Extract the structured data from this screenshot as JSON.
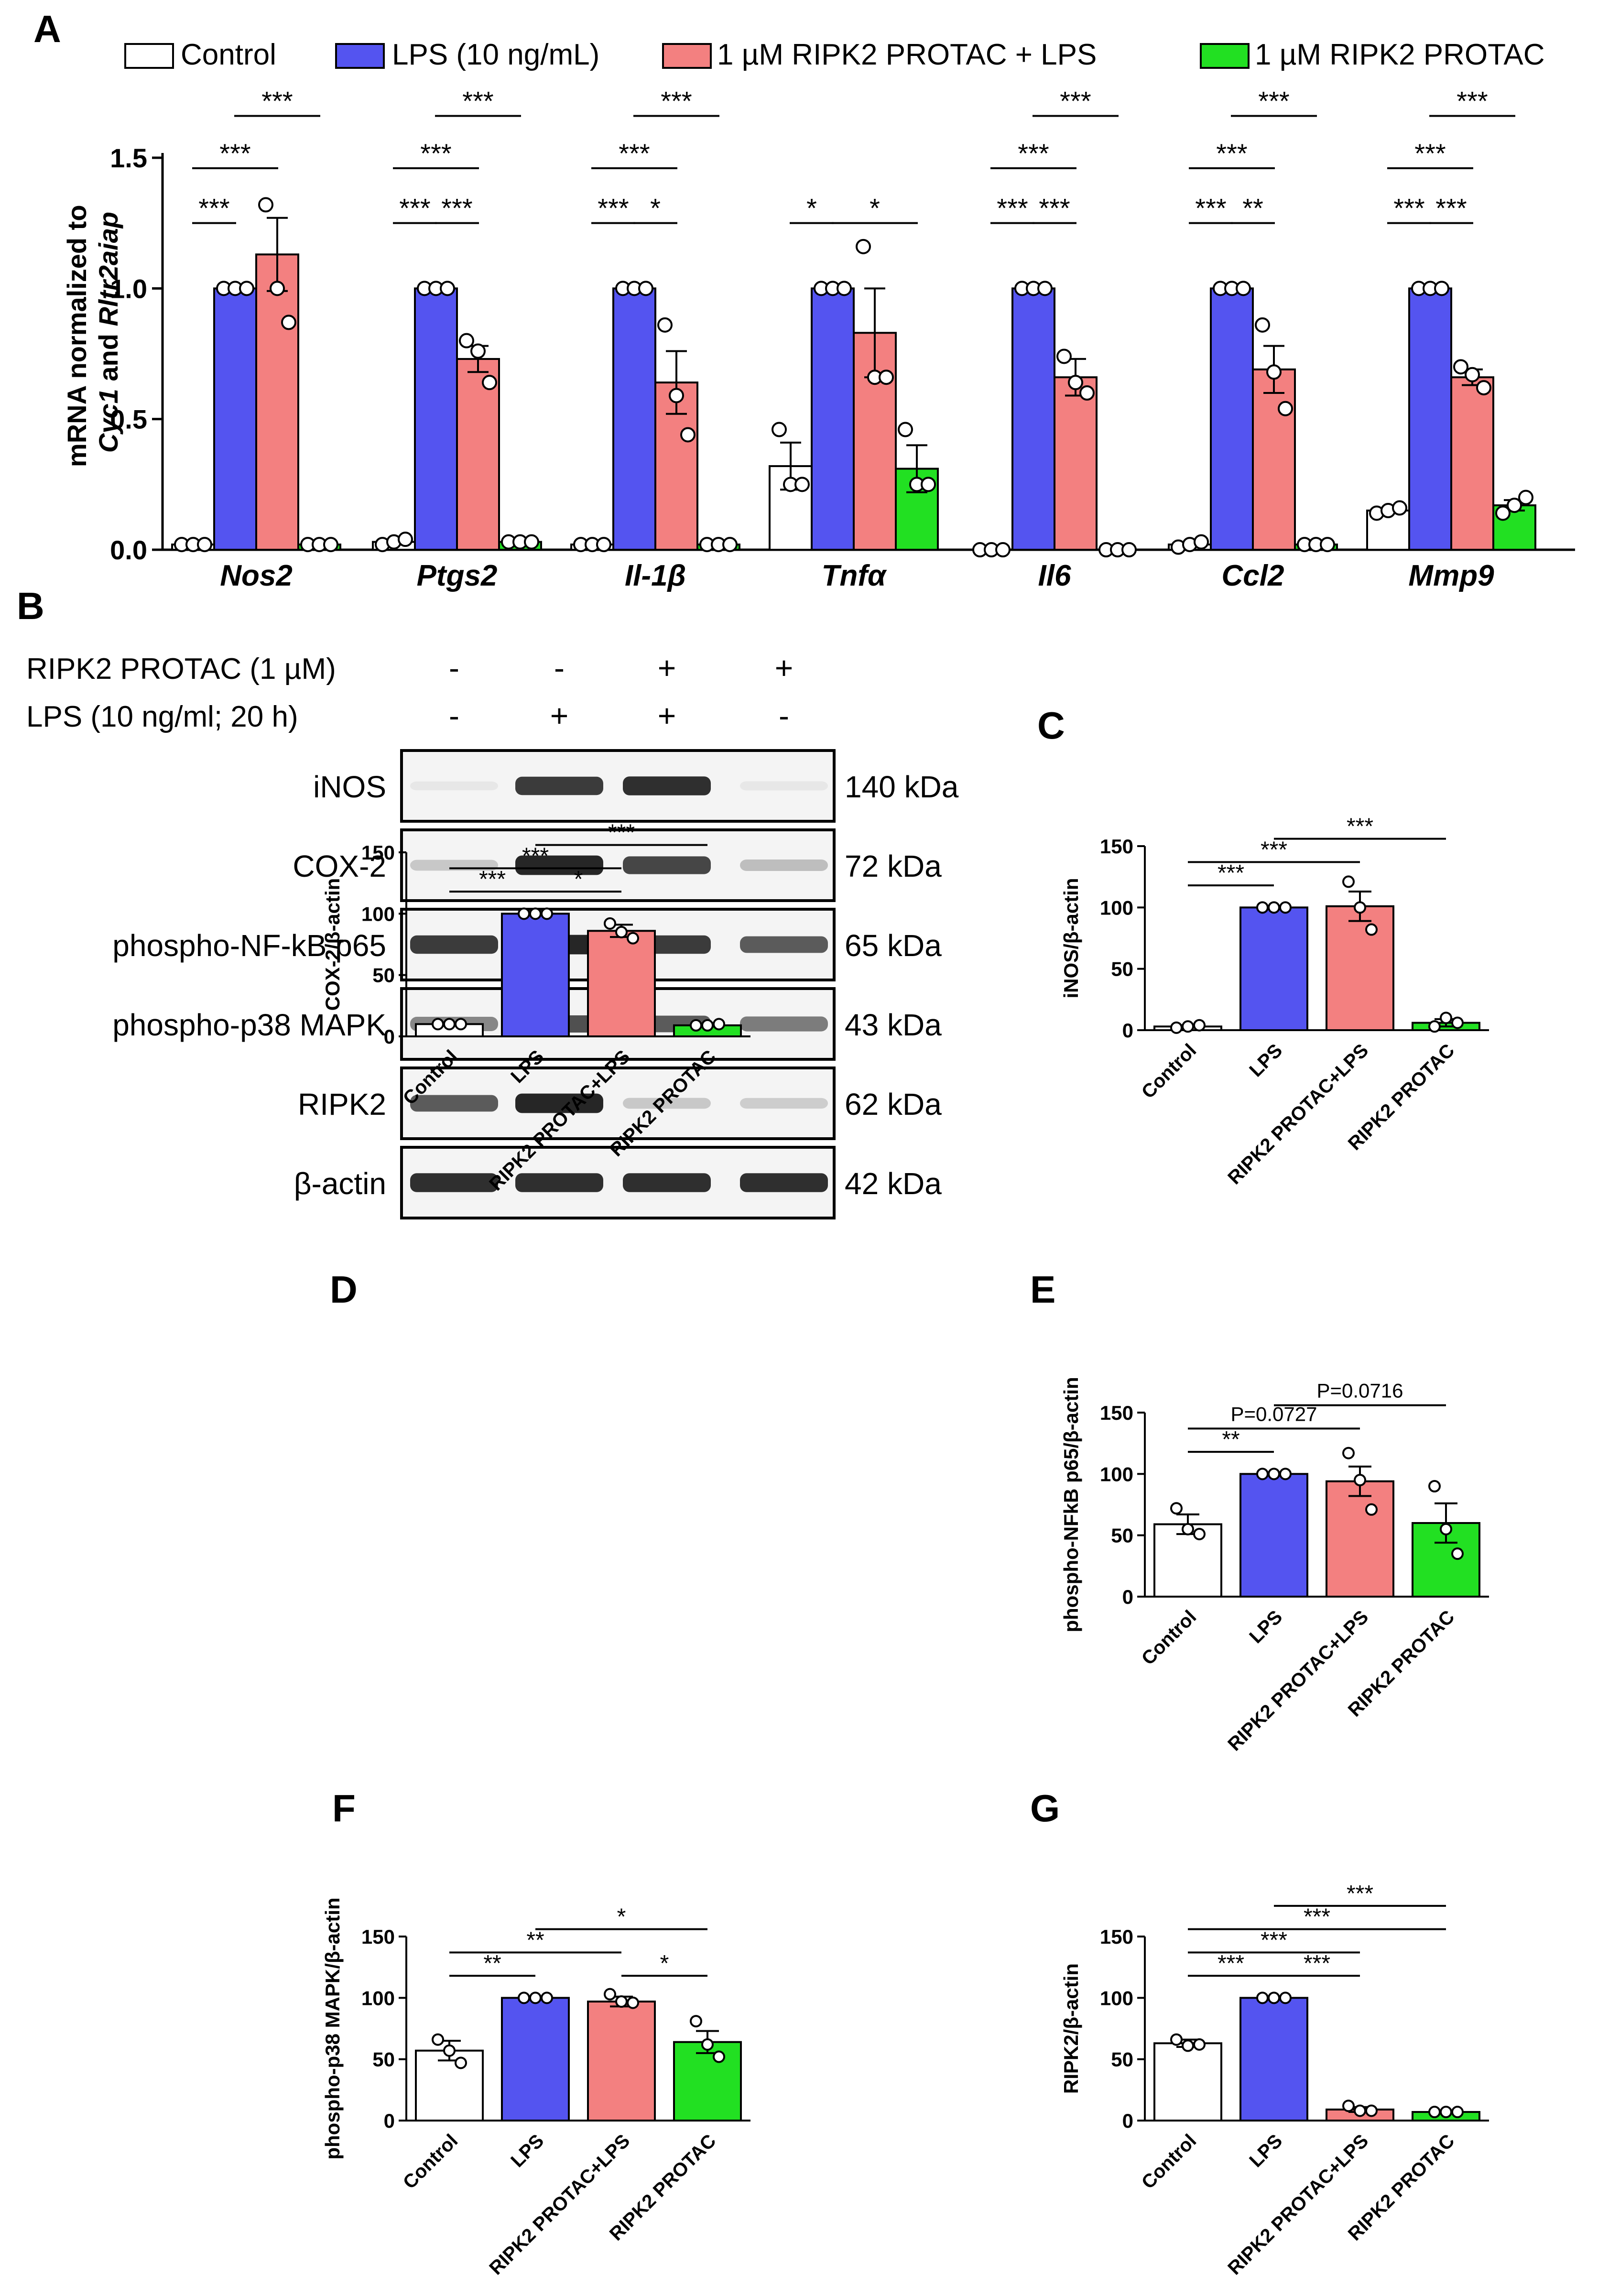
{
  "colors": {
    "control": "#ffffff",
    "lps": "#5454f0",
    "combo": "#f38080",
    "protac": "#22e022",
    "band": "#1a1a1a",
    "blot_bg": "#f4f4f4"
  },
  "panel_labels": [
    "A",
    "B",
    "C",
    "D",
    "E",
    "F",
    "G"
  ],
  "legend": [
    {
      "label": "Control",
      "color": "#ffffff"
    },
    {
      "label": "LPS (10 ng/mL)",
      "color": "#5454f0"
    },
    {
      "label": "1 µM RIPK2 PROTAC + LPS",
      "color": "#f38080"
    },
    {
      "label": "1 µM RIPK2 PROTAC",
      "color": "#22e022"
    }
  ],
  "blot": {
    "treatments": [
      {
        "label": "RIPK2 PROTAC (1 µM)",
        "signs": [
          "-",
          "-",
          "+",
          "+"
        ]
      },
      {
        "label": "LPS (10 ng/ml; 20 h)",
        "signs": [
          "-",
          "+",
          "+",
          "-"
        ]
      }
    ],
    "rows": [
      {
        "name": "iNOS",
        "size": "140 kDa",
        "intensity": [
          0.02,
          0.85,
          0.9,
          0.05
        ]
      },
      {
        "name": "COX-2",
        "size": "72 kDa",
        "intensity": [
          0.2,
          0.95,
          0.8,
          0.25
        ]
      },
      {
        "name": "phospho-NF-kB p65",
        "size": "65 kDa",
        "intensity": [
          0.85,
          0.95,
          0.85,
          0.7
        ]
      },
      {
        "name": "phospho-p38 MAPK",
        "size": "43 kDa",
        "intensity": [
          0.5,
          0.75,
          0.7,
          0.55
        ]
      },
      {
        "name": "RIPK2",
        "size": "62 kDa",
        "intensity": [
          0.7,
          0.95,
          0.2,
          0.18
        ]
      },
      {
        "name": "β-actin",
        "size": "42 kDa",
        "intensity": [
          0.9,
          0.9,
          0.9,
          0.9
        ]
      }
    ]
  },
  "chart_data": [
    {
      "id": "A",
      "type": "bar",
      "ylabel_parts": [
        "mRNA normalized to",
        "Cyc1",
        " and ",
        "Rltr2aiap"
      ],
      "ylim": [
        0,
        1.5
      ],
      "yticks": [
        "0.0",
        "0.5",
        "1.0",
        "1.5"
      ],
      "ytick_values": [
        0,
        0.5,
        1.0,
        1.5
      ],
      "series_names": [
        "Control",
        "LPS (10 ng/mL)",
        "1 µM RIPK2 PROTAC + LPS",
        "1 µM RIPK2 PROTAC"
      ],
      "groups": [
        {
          "gene": "Nos2",
          "values": [
            0.02,
            1.0,
            1.13,
            0.02
          ],
          "errors": [
            0.005,
            0,
            0.14,
            0.005
          ],
          "points": [
            [
              0.02,
              0.02,
              0.02
            ],
            [
              1,
              1,
              1
            ],
            [
              1.32,
              1.0,
              0.87
            ],
            [
              0.02,
              0.02,
              0.02
            ]
          ],
          "sig": [
            {
              "a": 0,
              "b": 1,
              "label": "***",
              "level": 1.25
            },
            {
              "a": 0,
              "b": 2,
              "label": "***",
              "level": 1.46
            },
            {
              "a": 1,
              "b": 3,
              "label": "***",
              "level": 1.66
            }
          ]
        },
        {
          "gene": "Ptgs2",
          "values": [
            0.03,
            1.0,
            0.73,
            0.03
          ],
          "errors": [
            0.01,
            0,
            0.05,
            0.01
          ],
          "points": [
            [
              0.02,
              0.03,
              0.04
            ],
            [
              1,
              1,
              1
            ],
            [
              0.8,
              0.76,
              0.64
            ],
            [
              0.03,
              0.03,
              0.03
            ]
          ],
          "sig": [
            {
              "a": 0,
              "b": 1,
              "label": "***",
              "level": 1.25
            },
            {
              "a": 1,
              "b": 2,
              "label": "***",
              "level": 1.25
            },
            {
              "a": 0,
              "b": 2,
              "label": "***",
              "level": 1.46
            },
            {
              "a": 1,
              "b": 3,
              "label": "***",
              "level": 1.66
            }
          ]
        },
        {
          "gene": "Il-1β",
          "values": [
            0.02,
            1.0,
            0.64,
            0.02
          ],
          "errors": [
            0.005,
            0,
            0.12,
            0.005
          ],
          "points": [
            [
              0.02,
              0.02,
              0.02
            ],
            [
              1,
              1,
              1
            ],
            [
              0.86,
              0.59,
              0.44
            ],
            [
              0.02,
              0.02,
              0.02
            ]
          ],
          "sig": [
            {
              "a": 0,
              "b": 1,
              "label": "***",
              "level": 1.25
            },
            {
              "a": 1,
              "b": 2,
              "label": "*",
              "level": 1.25
            },
            {
              "a": 0,
              "b": 2,
              "label": "***",
              "level": 1.46
            },
            {
              "a": 1,
              "b": 3,
              "label": "***",
              "level": 1.66
            }
          ]
        },
        {
          "gene": "Tnfα",
          "values": [
            0.32,
            1.0,
            0.83,
            0.31
          ],
          "errors": [
            0.09,
            0,
            0.17,
            0.09
          ],
          "points": [
            [
              0.46,
              0.25,
              0.25
            ],
            [
              1,
              1,
              1
            ],
            [
              1.16,
              0.66,
              0.66
            ],
            [
              0.46,
              0.25,
              0.25
            ]
          ],
          "sig": [
            {
              "a": 0,
              "b": 1,
              "label": "*",
              "level": 1.25
            },
            {
              "a": 1,
              "b": 3,
              "label": "*",
              "level": 1.25
            }
          ]
        },
        {
          "gene": "Il6",
          "values": [
            0.0,
            1.0,
            0.66,
            0.0
          ],
          "errors": [
            0,
            0,
            0.07,
            0
          ],
          "points": [
            [
              0,
              0,
              0
            ],
            [
              1,
              1,
              1
            ],
            [
              0.74,
              0.64,
              0.6
            ],
            [
              0,
              0,
              0
            ]
          ],
          "sig": [
            {
              "a": 0,
              "b": 1,
              "label": "***",
              "level": 1.25
            },
            {
              "a": 1,
              "b": 2,
              "label": "***",
              "level": 1.25
            },
            {
              "a": 0,
              "b": 2,
              "label": "***",
              "level": 1.46
            },
            {
              "a": 1,
              "b": 3,
              "label": "***",
              "level": 1.66
            }
          ]
        },
        {
          "gene": "Ccl2",
          "values": [
            0.02,
            1.0,
            0.69,
            0.02
          ],
          "errors": [
            0.005,
            0,
            0.09,
            0.005
          ],
          "points": [
            [
              0.01,
              0.02,
              0.03
            ],
            [
              1,
              1,
              1
            ],
            [
              0.86,
              0.68,
              0.54
            ],
            [
              0.02,
              0.02,
              0.02
            ]
          ],
          "sig": [
            {
              "a": 0,
              "b": 1,
              "label": "***",
              "level": 1.25
            },
            {
              "a": 1,
              "b": 2,
              "label": "**",
              "level": 1.25
            },
            {
              "a": 0,
              "b": 2,
              "label": "***",
              "level": 1.46
            },
            {
              "a": 1,
              "b": 3,
              "label": "***",
              "level": 1.66
            }
          ]
        },
        {
          "gene": "Mmp9",
          "values": [
            0.15,
            1.0,
            0.66,
            0.17
          ],
          "errors": [
            0.01,
            0,
            0.03,
            0.02
          ],
          "points": [
            [
              0.14,
              0.15,
              0.16
            ],
            [
              1,
              1,
              1
            ],
            [
              0.7,
              0.67,
              0.62
            ],
            [
              0.14,
              0.17,
              0.2
            ]
          ],
          "sig": [
            {
              "a": 0,
              "b": 1,
              "label": "***",
              "level": 1.25
            },
            {
              "a": 1,
              "b": 2,
              "label": "***",
              "level": 1.25
            },
            {
              "a": 0,
              "b": 2,
              "label": "***",
              "level": 1.46
            },
            {
              "a": 1,
              "b": 3,
              "label": "***",
              "level": 1.66
            }
          ]
        }
      ]
    },
    {
      "id": "C",
      "type": "bar",
      "ylabel": "iNOS/β-actin",
      "ylim": [
        0,
        150
      ],
      "yticks": [
        "0",
        "50",
        "100",
        "150"
      ],
      "ytick_values": [
        0,
        50,
        100,
        150
      ],
      "categories": [
        "Control",
        "LPS",
        "RIPK2 PROTAC+LPS",
        "RIPK2 PROTAC"
      ],
      "values": [
        3,
        100,
        101,
        6
      ],
      "errors": [
        1,
        0,
        12,
        3
      ],
      "points": [
        [
          2,
          3,
          4
        ],
        [
          100,
          100,
          100
        ],
        [
          121,
          100,
          82
        ],
        [
          3,
          10,
          6
        ]
      ],
      "sig": [
        {
          "a": 0,
          "b": 1,
          "label": "***",
          "level": 118
        },
        {
          "a": 0,
          "b": 2,
          "label": "***",
          "level": 137
        },
        {
          "a": 1,
          "b": 3,
          "label": "***",
          "level": 156
        }
      ]
    },
    {
      "id": "D",
      "type": "bar",
      "ylabel": "COX-2/β-actin",
      "ylim": [
        0,
        150
      ],
      "yticks": [
        "0",
        "50",
        "100",
        "150"
      ],
      "ytick_values": [
        0,
        50,
        100,
        150
      ],
      "categories": [
        "Control",
        "LPS",
        "RIPK2 PROTAC+LPS",
        "RIPK2 PROTAC"
      ],
      "values": [
        10,
        100,
        86,
        9
      ],
      "errors": [
        1,
        0,
        5,
        1
      ],
      "points": [
        [
          10,
          10,
          10
        ],
        [
          100,
          100,
          100
        ],
        [
          92,
          85,
          80
        ],
        [
          9,
          9,
          10
        ]
      ],
      "sig": [
        {
          "a": 0,
          "b": 1,
          "label": "***",
          "level": 118
        },
        {
          "a": 1,
          "b": 2,
          "label": "*",
          "level": 118
        },
        {
          "a": 0,
          "b": 2,
          "label": "***",
          "level": 137
        },
        {
          "a": 1,
          "b": 3,
          "label": "***",
          "level": 156
        }
      ]
    },
    {
      "id": "E",
      "type": "bar",
      "ylabel": "phospho-NFkB p65/β-actin",
      "ylim": [
        0,
        150
      ],
      "yticks": [
        "0",
        "50",
        "100",
        "150"
      ],
      "ytick_values": [
        0,
        50,
        100,
        150
      ],
      "categories": [
        "Control",
        "LPS",
        "RIPK2 PROTAC+LPS",
        "RIPK2 PROTAC"
      ],
      "values": [
        59,
        100,
        94,
        60
      ],
      "errors": [
        8,
        0,
        12,
        16
      ],
      "points": [
        [
          72,
          55,
          51
        ],
        [
          100,
          100,
          100
        ],
        [
          117,
          95,
          71
        ],
        [
          90,
          55,
          35
        ]
      ],
      "sig": [
        {
          "a": 0,
          "b": 1,
          "label": "**",
          "level": 118
        },
        {
          "a": 0,
          "b": 2,
          "label": "P=0.0727",
          "level": 137
        },
        {
          "a": 1,
          "b": 3,
          "label": "P=0.0716",
          "level": 156
        }
      ]
    },
    {
      "id": "F",
      "type": "bar",
      "ylabel": "phospho-p38 MAPK/β-actin",
      "ylim": [
        0,
        150
      ],
      "yticks": [
        "0",
        "50",
        "100",
        "150"
      ],
      "ytick_values": [
        0,
        50,
        100,
        150
      ],
      "categories": [
        "Control",
        "LPS",
        "RIPK2 PROTAC+LPS",
        "RIPK2 PROTAC"
      ],
      "values": [
        57,
        100,
        97,
        64
      ],
      "errors": [
        8,
        0,
        4,
        9
      ],
      "points": [
        [
          66,
          57,
          47
        ],
        [
          100,
          100,
          100
        ],
        [
          103,
          97,
          96
        ],
        [
          81,
          62,
          52
        ]
      ],
      "sig": [
        {
          "a": 0,
          "b": 1,
          "label": "**",
          "level": 118
        },
        {
          "a": 2,
          "b": 3,
          "label": "*",
          "level": 118
        },
        {
          "a": 0,
          "b": 2,
          "label": "**",
          "level": 137
        },
        {
          "a": 1,
          "b": 3,
          "label": "*",
          "level": 156
        }
      ]
    },
    {
      "id": "G",
      "type": "bar",
      "ylabel": "RIPK2/β-actin",
      "ylim": [
        0,
        150
      ],
      "yticks": [
        "0",
        "50",
        "100",
        "150"
      ],
      "ytick_values": [
        0,
        50,
        100,
        150
      ],
      "categories": [
        "Control",
        "LPS",
        "RIPK2 PROTAC+LPS",
        "RIPK2 PROTAC"
      ],
      "values": [
        63,
        100,
        9,
        7
      ],
      "errors": [
        3,
        0,
        2,
        1
      ],
      "points": [
        [
          66,
          61,
          62
        ],
        [
          100,
          100,
          100
        ],
        [
          12,
          8,
          8
        ],
        [
          7,
          7,
          7
        ]
      ],
      "sig": [
        {
          "a": 0,
          "b": 1,
          "label": "***",
          "level": 118
        },
        {
          "a": 1,
          "b": 2,
          "label": "***",
          "level": 118
        },
        {
          "a": 0,
          "b": 2,
          "label": "***",
          "level": 137
        },
        {
          "a": 0,
          "b": 3,
          "label": "***",
          "level": 156
        },
        {
          "a": 1,
          "b": 3,
          "label": "***",
          "level": 175
        }
      ]
    }
  ]
}
